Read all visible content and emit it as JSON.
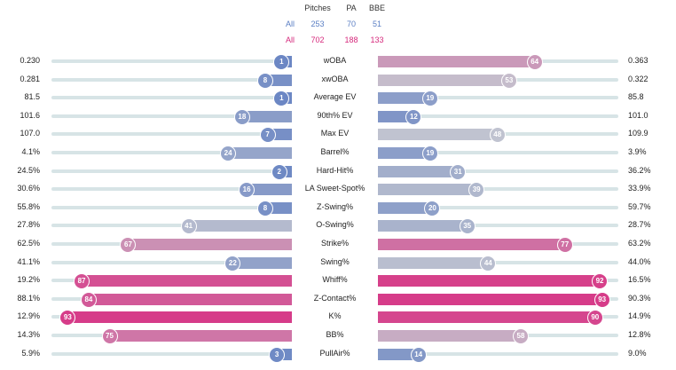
{
  "header": {
    "columns": [
      "Pitches",
      "PA",
      "BBE"
    ],
    "rows": [
      {
        "label": "All",
        "color": "#5b7fc4",
        "values": [
          "253",
          "70",
          "51"
        ]
      },
      {
        "label": "All",
        "color": "#d6297c",
        "values": [
          "702",
          "188",
          "133"
        ]
      }
    ]
  },
  "metrics": [
    {
      "label": "wOBA",
      "left_value": "0.230",
      "left_pct": 1,
      "right_value": "0.363",
      "right_pct": 64
    },
    {
      "label": "xwOBA",
      "left_value": "0.281",
      "left_pct": 8,
      "right_value": "0.322",
      "right_pct": 53
    },
    {
      "label": "Average EV",
      "left_value": "81.5",
      "left_pct": 1,
      "right_value": "85.8",
      "right_pct": 19
    },
    {
      "label": "90th% EV",
      "left_value": "101.6",
      "left_pct": 18,
      "right_value": "101.0",
      "right_pct": 12
    },
    {
      "label": "Max EV",
      "left_value": "107.0",
      "left_pct": 7,
      "right_value": "109.9",
      "right_pct": 48
    },
    {
      "label": "Barrel%",
      "left_value": "4.1%",
      "left_pct": 24,
      "right_value": "3.9%",
      "right_pct": 19
    },
    {
      "label": "Hard-Hit%",
      "left_value": "24.5%",
      "left_pct": 2,
      "right_value": "36.2%",
      "right_pct": 31
    },
    {
      "label": "LA Sweet-Spot%",
      "left_value": "30.6%",
      "left_pct": 16,
      "right_value": "33.9%",
      "right_pct": 39
    },
    {
      "label": "Z-Swing%",
      "left_value": "55.8%",
      "left_pct": 8,
      "right_value": "59.7%",
      "right_pct": 20
    },
    {
      "label": "O-Swing%",
      "left_value": "27.8%",
      "left_pct": 41,
      "right_value": "28.7%",
      "right_pct": 35
    },
    {
      "label": "Strike%",
      "left_value": "62.5%",
      "left_pct": 67,
      "right_value": "63.2%",
      "right_pct": 77
    },
    {
      "label": "Swing%",
      "left_value": "41.1%",
      "left_pct": 22,
      "right_value": "44.0%",
      "right_pct": 44
    },
    {
      "label": "Whiff%",
      "left_value": "19.2%",
      "left_pct": 87,
      "right_value": "16.5%",
      "right_pct": 92
    },
    {
      "label": "Z-Contact%",
      "left_value": "88.1%",
      "left_pct": 84,
      "right_value": "90.3%",
      "right_pct": 93
    },
    {
      "label": "K%",
      "left_value": "12.9%",
      "left_pct": 93,
      "right_value": "14.9%",
      "right_pct": 90
    },
    {
      "label": "BB%",
      "left_value": "14.3%",
      "left_pct": 75,
      "right_value": "12.8%",
      "right_pct": 58
    },
    {
      "label": "PullAir%",
      "left_value": "5.9%",
      "left_pct": 3,
      "right_value": "9.0%",
      "right_pct": 14
    }
  ]
}
